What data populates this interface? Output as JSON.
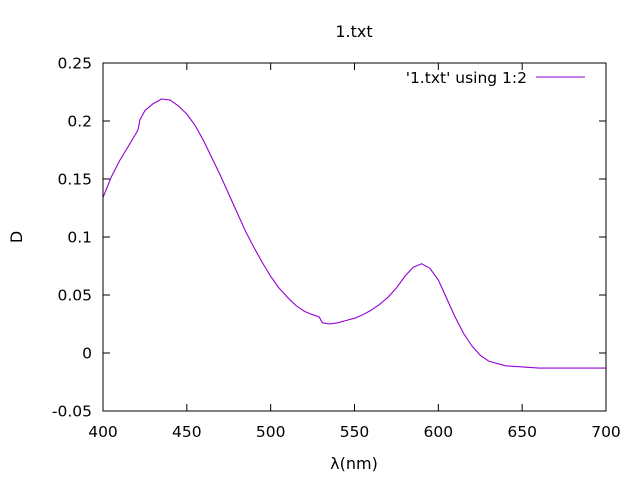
{
  "chart_data": {
    "type": "line",
    "title": "1.txt",
    "xlabel": "λ(nm)",
    "ylabel": "D",
    "xlim": [
      400,
      700
    ],
    "ylim": [
      -0.05,
      0.25
    ],
    "xticks": [
      "400",
      "450",
      "500",
      "550",
      "600",
      "650",
      "700"
    ],
    "yticks": [
      "-0.05",
      "0",
      "0.05",
      "0.1",
      "0.15",
      "0.2",
      "0.25"
    ],
    "grid": false,
    "legend_position": "top-right",
    "series": [
      {
        "name": "'1.txt' using 1:2",
        "color": "#9400d3",
        "x": [
          400,
          405,
          410,
          415,
          420,
          421,
          422,
          425,
          430,
          435,
          440,
          445,
          450,
          455,
          460,
          465,
          470,
          475,
          480,
          485,
          490,
          495,
          500,
          505,
          510,
          515,
          520,
          525,
          529,
          530,
          531,
          535,
          540,
          545,
          550,
          555,
          560,
          565,
          570,
          575,
          580,
          585,
          590,
          595,
          600,
          605,
          610,
          615,
          620,
          625,
          630,
          640,
          650,
          660,
          670,
          680,
          690,
          700
        ],
        "y": [
          0.134,
          0.152,
          0.166,
          0.178,
          0.19,
          0.193,
          0.201,
          0.209,
          0.215,
          0.219,
          0.218,
          0.213,
          0.206,
          0.196,
          0.183,
          0.168,
          0.153,
          0.137,
          0.121,
          0.105,
          0.091,
          0.078,
          0.066,
          0.056,
          0.048,
          0.041,
          0.036,
          0.033,
          0.031,
          0.028,
          0.026,
          0.025,
          0.026,
          0.028,
          0.03,
          0.033,
          0.037,
          0.042,
          0.048,
          0.056,
          0.066,
          0.074,
          0.077,
          0.073,
          0.063,
          0.047,
          0.031,
          0.017,
          0.006,
          -0.002,
          -0.007,
          -0.011,
          -0.012,
          -0.013,
          -0.013,
          -0.013,
          -0.013,
          -0.013
        ]
      }
    ]
  }
}
